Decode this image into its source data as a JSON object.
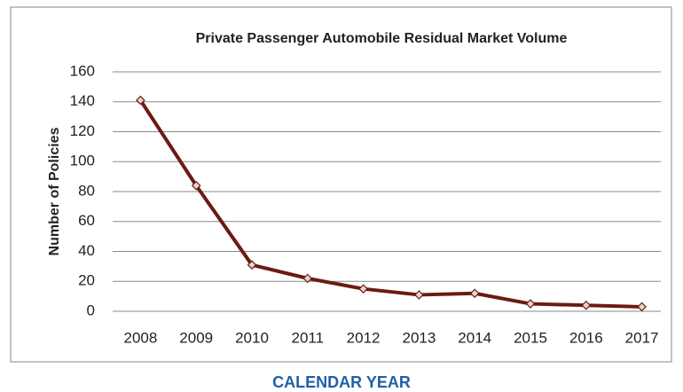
{
  "chart_data": {
    "type": "line",
    "title": "Private Passenger Automobile Residual Market Volume",
    "x_label": "CALENDAR YEAR",
    "y_label": "Number of Policies",
    "categories": [
      "2008",
      "2009",
      "2010",
      "2011",
      "2012",
      "2013",
      "2014",
      "2015",
      "2016",
      "2017"
    ],
    "series": [
      {
        "name": "Number of Policies",
        "color": "#6b1a14",
        "values": [
          141,
          84,
          31,
          22,
          15,
          11,
          12,
          5,
          4,
          3
        ]
      }
    ],
    "ylim": [
      0,
      160
    ],
    "yticks": [
      0,
      20,
      40,
      60,
      80,
      100,
      120,
      140,
      160
    ],
    "grid": true
  }
}
